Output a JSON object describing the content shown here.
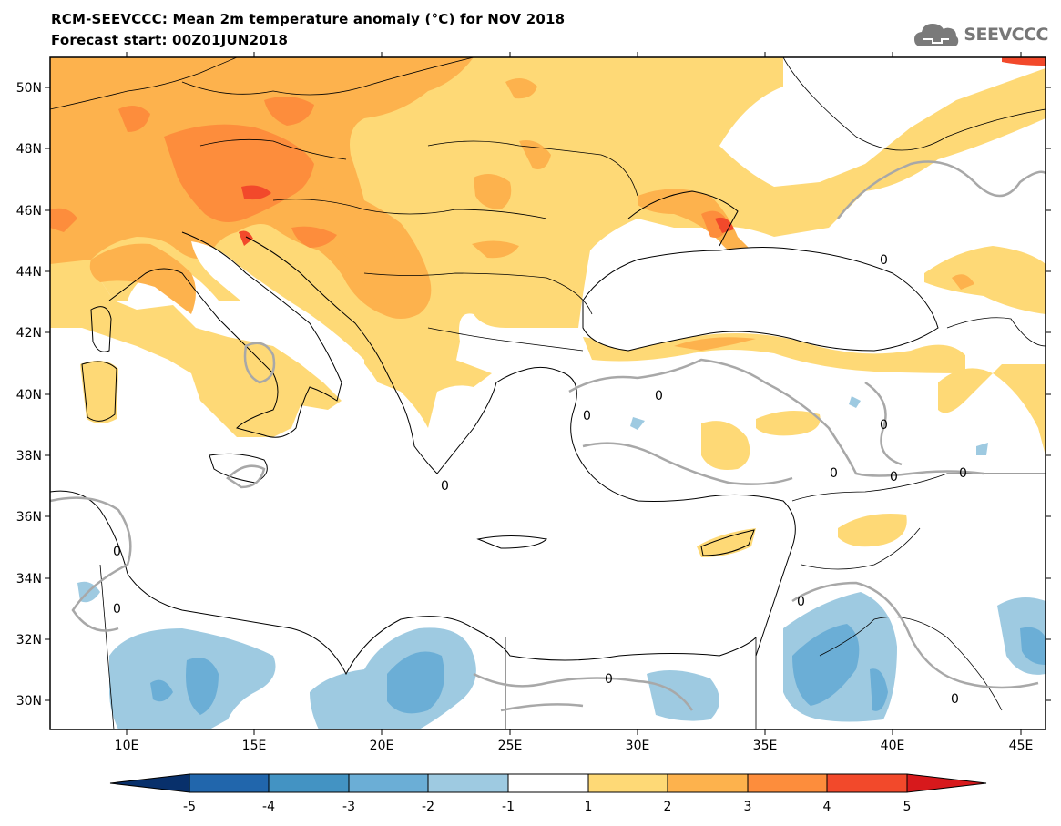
{
  "header": {
    "title": "RCM-SEEVCCC: Mean 2m temperature anomaly (°C) for NOV 2018",
    "subtitle": "Forecast start: 00Z01JUN2018",
    "logo_text": "SEEVCCC"
  },
  "map": {
    "lat_labels": [
      "50N",
      "48N",
      "46N",
      "44N",
      "42N",
      "40N",
      "38N",
      "36N",
      "34N",
      "32N",
      "30N"
    ],
    "lon_labels": [
      "10E",
      "15E",
      "20E",
      "25E",
      "30E",
      "35E",
      "40E",
      "45E"
    ],
    "contour_label": "0"
  },
  "colorbar": {
    "labels": [
      "-5",
      "-4",
      "-3",
      "-2",
      "-1",
      "1",
      "2",
      "3",
      "4",
      "5"
    ],
    "colors": [
      "#08306b",
      "#2166ac",
      "#4393c3",
      "#6baed6",
      "#9ecae1",
      "#ffffff",
      "#fed976",
      "#fdb24d",
      "#fd8d3c",
      "#f2492b",
      "#d7191c"
    ]
  }
}
